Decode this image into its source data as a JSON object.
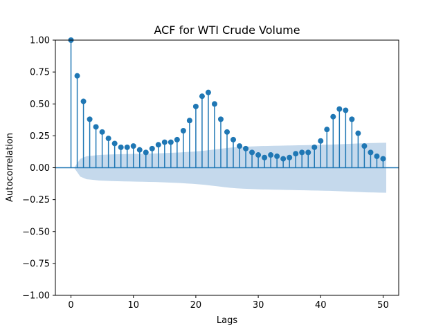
{
  "chart_data": {
    "type": "scatter",
    "subtype": "stem-acf",
    "title": "ACF for WTI Crude Volume",
    "xlabel": "Lags",
    "ylabel": "Autocorrelation",
    "xlim": [
      -2.5,
      52.5
    ],
    "ylim": [
      -1.0,
      1.0
    ],
    "xticks": [
      0,
      10,
      20,
      30,
      40,
      50
    ],
    "xtick_labels": [
      "0",
      "10",
      "20",
      "30",
      "40",
      "50"
    ],
    "yticks": [
      -1.0,
      -0.75,
      -0.5,
      -0.25,
      0.0,
      0.25,
      0.5,
      0.75,
      1.0
    ],
    "ytick_labels": [
      "−1.00",
      "−0.75",
      "−0.50",
      "−0.25",
      "0.00",
      "0.25",
      "0.50",
      "0.75",
      "1.00"
    ],
    "grid": false,
    "color": "#1f77b4",
    "band_color": "#c5d9ec",
    "lags": [
      0,
      1,
      2,
      3,
      4,
      5,
      6,
      7,
      8,
      9,
      10,
      11,
      12,
      13,
      14,
      15,
      16,
      17,
      18,
      19,
      20,
      21,
      22,
      23,
      24,
      25,
      26,
      27,
      28,
      29,
      30,
      31,
      32,
      33,
      34,
      35,
      36,
      37,
      38,
      39,
      40,
      41,
      42,
      43,
      44,
      45,
      46,
      47,
      48,
      49,
      50
    ],
    "values": [
      1.0,
      0.72,
      0.52,
      0.38,
      0.32,
      0.28,
      0.23,
      0.19,
      0.16,
      0.16,
      0.17,
      0.14,
      0.12,
      0.15,
      0.18,
      0.2,
      0.2,
      0.22,
      0.29,
      0.37,
      0.48,
      0.56,
      0.59,
      0.5,
      0.38,
      0.28,
      0.22,
      0.17,
      0.15,
      0.12,
      0.1,
      0.08,
      0.1,
      0.09,
      0.07,
      0.08,
      0.11,
      0.12,
      0.12,
      0.16,
      0.21,
      0.3,
      0.4,
      0.46,
      0.45,
      0.38,
      0.27,
      0.17,
      0.12,
      0.09,
      0.07
    ],
    "confidence_upper": [
      0.0,
      0.07,
      0.09,
      0.095,
      0.1,
      0.102,
      0.104,
      0.106,
      0.107,
      0.108,
      0.109,
      0.11,
      0.111,
      0.112,
      0.114,
      0.116,
      0.118,
      0.12,
      0.123,
      0.126,
      0.13,
      0.134,
      0.14,
      0.146,
      0.152,
      0.157,
      0.161,
      0.164,
      0.166,
      0.168,
      0.17,
      0.171,
      0.172,
      0.173,
      0.174,
      0.175,
      0.176,
      0.177,
      0.178,
      0.179,
      0.18,
      0.181,
      0.183,
      0.185,
      0.187,
      0.189,
      0.191,
      0.193,
      0.194,
      0.195,
      0.196
    ]
  }
}
